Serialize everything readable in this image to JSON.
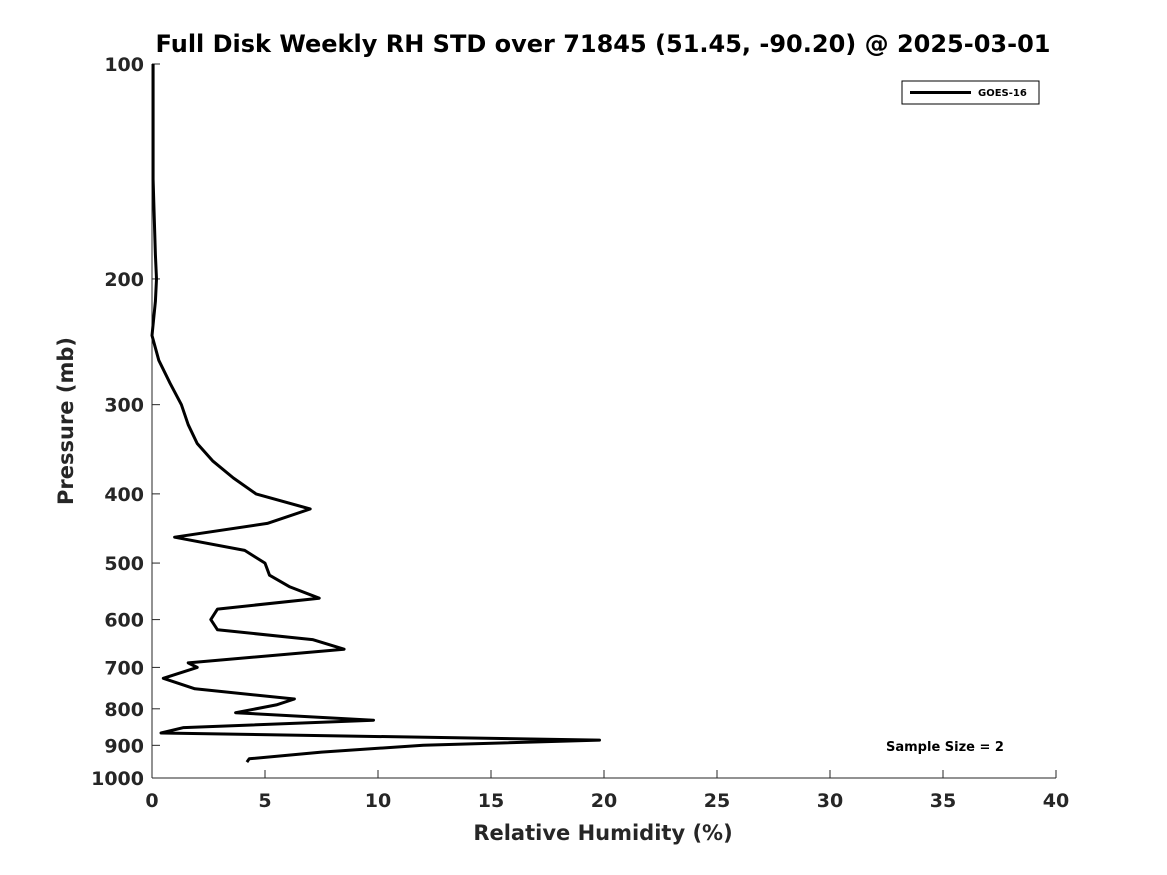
{
  "chart_data": {
    "type": "line",
    "title": "Full Disk Weekly RH STD over 71845 (51.45, -90.20) @ 2025-03-01",
    "xlabel": "Relative Humidity (%)",
    "ylabel": "Pressure (mb)",
    "xlim": [
      0,
      40
    ],
    "ylim": [
      100,
      1000
    ],
    "y_scale": "log",
    "y_reversed": true,
    "x_ticks": [
      "0",
      "5",
      "10",
      "15",
      "20",
      "25",
      "30",
      "35",
      "40"
    ],
    "y_ticks": [
      "100",
      "200",
      "300",
      "400",
      "500",
      "600",
      "700",
      "800",
      "900",
      "1000"
    ],
    "legend": {
      "position": "top-right",
      "entries": [
        "GOES-16"
      ]
    },
    "annotation": "Sample Size = 2",
    "series": [
      {
        "name": "GOES-16",
        "color": "#000000",
        "points": [
          [
            0.05,
            100
          ],
          [
            0.05,
            110
          ],
          [
            0.05,
            125
          ],
          [
            0.05,
            145
          ],
          [
            0.1,
            165
          ],
          [
            0.15,
            185
          ],
          [
            0.2,
            200
          ],
          [
            0.15,
            215
          ],
          [
            0.0,
            240
          ],
          [
            0.3,
            260
          ],
          [
            0.8,
            280
          ],
          [
            1.3,
            300
          ],
          [
            1.6,
            320
          ],
          [
            2.0,
            340
          ],
          [
            2.7,
            360
          ],
          [
            3.6,
            380
          ],
          [
            4.6,
            400
          ],
          [
            7.0,
            420
          ],
          [
            5.1,
            440
          ],
          [
            1.0,
            460
          ],
          [
            4.1,
            480
          ],
          [
            5.0,
            500
          ],
          [
            5.2,
            520
          ],
          [
            6.1,
            540
          ],
          [
            7.4,
            560
          ],
          [
            2.9,
            580
          ],
          [
            2.6,
            600
          ],
          [
            2.9,
            620
          ],
          [
            7.1,
            640
          ],
          [
            8.5,
            660
          ],
          [
            1.6,
            690
          ],
          [
            2.0,
            700
          ],
          [
            0.5,
            725
          ],
          [
            1.9,
            750
          ],
          [
            6.3,
            775
          ],
          [
            5.5,
            790
          ],
          [
            3.7,
            810
          ],
          [
            9.8,
            830
          ],
          [
            1.4,
            850
          ],
          [
            0.4,
            865
          ],
          [
            19.8,
            885
          ],
          [
            12.0,
            900
          ],
          [
            7.5,
            920
          ],
          [
            4.3,
            940
          ],
          [
            4.2,
            950
          ]
        ]
      }
    ]
  }
}
